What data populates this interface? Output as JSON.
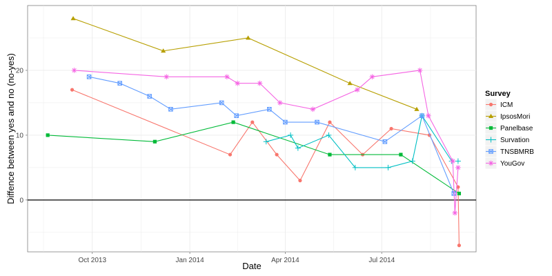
{
  "chart_data": {
    "type": "line",
    "title": "",
    "xlabel": "Date",
    "ylabel": "Diffence between yes and no (no-yes)",
    "x_axis": {
      "range": [
        "2013-08-01",
        "2014-09-28"
      ],
      "ticks": [
        {
          "date": "2013-10-01",
          "label": "Oct 2013"
        },
        {
          "date": "2014-01-01",
          "label": "Jan 2014"
        },
        {
          "date": "2014-04-01",
          "label": "Apr 2014"
        },
        {
          "date": "2014-07-01",
          "label": "Jul 2014"
        }
      ]
    },
    "y_axis": {
      "range": [
        -8,
        30
      ],
      "ticks": [
        0,
        10,
        20
      ]
    },
    "reference_line": {
      "y": 0
    },
    "grid": true,
    "legend": {
      "title": "Survey",
      "position": "right"
    },
    "colors": {
      "panel_background": "#ffffff",
      "grid": "#ebebeb",
      "reference_line": "#000000"
    },
    "series": [
      {
        "name": "ICM",
        "color": "#f8766d",
        "marker": "circle",
        "x": [
          "2013-09-12",
          "2014-02-08",
          "2014-03-01",
          "2014-03-24",
          "2014-04-15",
          "2014-05-13",
          "2014-06-13",
          "2014-07-10",
          "2014-08-15",
          "2014-09-11",
          "2014-09-12"
        ],
        "y": [
          17,
          7,
          12,
          7,
          3,
          12,
          7,
          11,
          10,
          2,
          -7
        ]
      },
      {
        "name": "IpsosMori",
        "color": "#b79f00",
        "marker": "triangle",
        "x": [
          "2013-09-13",
          "2013-12-07",
          "2014-02-25",
          "2014-06-01",
          "2014-08-03"
        ],
        "y": [
          28,
          23,
          25,
          18,
          14
        ]
      },
      {
        "name": "Panelbase",
        "color": "#00ba38",
        "marker": "square",
        "x": [
          "2013-08-20",
          "2013-11-29",
          "2014-02-11",
          "2014-05-13",
          "2014-07-19",
          "2014-09-12"
        ],
        "y": [
          10,
          9,
          12,
          7,
          7,
          1
        ]
      },
      {
        "name": "Survation",
        "color": "#00bfc4",
        "marker": "plus",
        "x": [
          "2014-03-14",
          "2014-04-06",
          "2014-04-13",
          "2014-05-12",
          "2014-06-06",
          "2014-07-07",
          "2014-07-30",
          "2014-08-08",
          "2014-09-05",
          "2014-09-11"
        ],
        "y": [
          9,
          10,
          8,
          10,
          5,
          5,
          6,
          13,
          6,
          6
        ]
      },
      {
        "name": "TNSBMRB",
        "color": "#619cff",
        "marker": "square-x",
        "x": [
          "2013-09-28",
          "2013-10-27",
          "2013-11-24",
          "2013-12-14",
          "2014-01-31",
          "2014-02-14",
          "2014-03-17",
          "2014-04-01",
          "2014-05-01",
          "2014-07-04",
          "2014-08-08",
          "2014-09-07"
        ],
        "y": [
          19,
          18,
          16,
          14,
          15,
          13,
          14,
          12,
          12,
          9,
          13,
          1
        ]
      },
      {
        "name": "YouGov",
        "color": "#f564e3",
        "marker": "star",
        "x": [
          "2013-09-14",
          "2013-12-10",
          "2014-02-05",
          "2014-02-15",
          "2014-03-08",
          "2014-03-27",
          "2014-04-27",
          "2014-06-08",
          "2014-06-22",
          "2014-08-06",
          "2014-08-14",
          "2014-09-06",
          "2014-09-08",
          "2014-09-11"
        ],
        "y": [
          20,
          19,
          19,
          18,
          18,
          15,
          14,
          17,
          19,
          20,
          13,
          6,
          -2,
          5
        ]
      }
    ]
  }
}
